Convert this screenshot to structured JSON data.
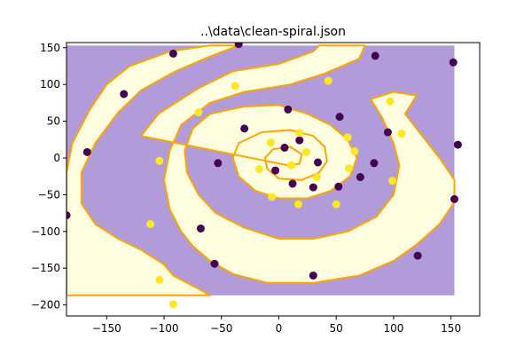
{
  "chart_data": {
    "type": "scatter",
    "title": "..\\data\\clean-spiral.json",
    "xlabel": "",
    "ylabel": "",
    "xlim": [
      -185,
      175
    ],
    "ylim": [
      -215,
      157
    ],
    "xticks": [
      -150,
      -100,
      -50,
      0,
      50,
      100,
      150
    ],
    "yticks": [
      -200,
      -150,
      -100,
      -50,
      0,
      50,
      100,
      150
    ],
    "grid": false,
    "background_region": {
      "x": [
        -185,
        153
      ],
      "y": [
        -187,
        153
      ],
      "class0_color": "#b19cd9",
      "class1_color": "#ffffe0",
      "boundary_color": "#ffa500"
    },
    "class1_regions": [
      [
        [
          -185,
          -155
        ],
        [
          -185,
          -187
        ],
        [
          -60,
          -187
        ],
        [
          -70,
          -178
        ],
        [
          -80,
          -170
        ],
        [
          -92,
          -160
        ],
        [
          -100,
          -145
        ],
        [
          -120,
          -125
        ],
        [
          -140,
          -110
        ],
        [
          -160,
          -90
        ],
        [
          -172,
          -62
        ],
        [
          -172,
          -20
        ],
        [
          -160,
          20
        ],
        [
          -140,
          62
        ],
        [
          -120,
          92
        ],
        [
          -90,
          118
        ],
        [
          -60,
          138
        ],
        [
          -35,
          153
        ],
        [
          -60,
          153
        ],
        [
          -95,
          145
        ],
        [
          -130,
          125
        ],
        [
          -150,
          100
        ],
        [
          -165,
          65
        ],
        [
          -180,
          20
        ],
        [
          -185,
          -20
        ]
      ],
      [
        [
          -120,
          30
        ],
        [
          -105,
          60
        ],
        [
          -70,
          95
        ],
        [
          -40,
          118
        ],
        [
          0,
          128
        ],
        [
          30,
          145
        ],
        [
          35,
          153
        ],
        [
          75,
          153
        ],
        [
          70,
          135
        ],
        [
          40,
          115
        ],
        [
          10,
          100
        ],
        [
          -30,
          90
        ],
        [
          -60,
          75
        ],
        [
          -85,
          45
        ],
        [
          -95,
          10
        ],
        [
          -100,
          -30
        ],
        [
          -95,
          -70
        ],
        [
          -85,
          -100
        ],
        [
          -75,
          -120
        ],
        [
          -60,
          -140
        ],
        [
          -40,
          -158
        ],
        [
          -10,
          -170
        ],
        [
          30,
          -170
        ],
        [
          70,
          -160
        ],
        [
          100,
          -140
        ],
        [
          120,
          -118
        ],
        [
          140,
          -90
        ],
        [
          153,
          -60
        ],
        [
          153,
          -30
        ],
        [
          140,
          0
        ],
        [
          125,
          30
        ],
        [
          110,
          60
        ],
        [
          120,
          85
        ],
        [
          100,
          90
        ],
        [
          80,
          80
        ],
        [
          90,
          55
        ],
        [
          100,
          20
        ],
        [
          105,
          -10
        ],
        [
          100,
          -50
        ],
        [
          85,
          -80
        ],
        [
          60,
          -100
        ],
        [
          30,
          -110
        ],
        [
          0,
          -110
        ],
        [
          -30,
          -95
        ],
        [
          -55,
          -75
        ],
        [
          -70,
          -50
        ],
        [
          -80,
          -20
        ],
        [
          -82,
          10
        ],
        [
          -75,
          40
        ],
        [
          -60,
          60
        ],
        [
          -30,
          70
        ],
        [
          0,
          72
        ],
        [
          25,
          60
        ],
        [
          45,
          45
        ],
        [
          60,
          25
        ],
        [
          68,
          0
        ],
        [
          62,
          -25
        ],
        [
          45,
          -45
        ],
        [
          25,
          -55
        ],
        [
          0,
          -55
        ],
        [
          -20,
          -45
        ],
        [
          -35,
          -25
        ],
        [
          -40,
          0
        ],
        [
          -35,
          20
        ],
        [
          -15,
          35
        ],
        [
          10,
          38
        ],
        [
          30,
          30
        ],
        [
          40,
          15
        ],
        [
          42,
          -5
        ],
        [
          35,
          -20
        ],
        [
          20,
          -30
        ],
        [
          0,
          -28
        ],
        [
          -10,
          -15
        ],
        [
          -12,
          0
        ],
        [
          -5,
          12
        ],
        [
          10,
          15
        ],
        [
          20,
          5
        ],
        [
          18,
          -8
        ],
        [
          8,
          -10
        ]
      ]
    ],
    "series": [
      {
        "color": "#440154",
        "points": [
          [
            -35,
            155
          ],
          [
            -92,
            142
          ],
          [
            -135,
            87
          ],
          [
            -167,
            8
          ],
          [
            -185,
            -78
          ],
          [
            -56,
            -144
          ],
          [
            -68,
            -96
          ],
          [
            -53,
            -7
          ],
          [
            -30,
            40
          ],
          [
            8,
            66
          ],
          [
            53,
            56
          ],
          [
            84,
            139
          ],
          [
            152,
            130
          ],
          [
            156,
            18
          ],
          [
            153,
            -56
          ],
          [
            121,
            -133
          ],
          [
            30,
            -160
          ],
          [
            95,
            35
          ],
          [
            83,
            -7
          ],
          [
            71,
            -26
          ],
          [
            52,
            -39
          ],
          [
            30,
            -40
          ],
          [
            12,
            -35
          ],
          [
            -3,
            -17
          ],
          [
            5,
            14
          ],
          [
            18,
            24
          ],
          [
            34,
            -6
          ]
        ]
      },
      {
        "color": "#fde725",
        "points": [
          [
            -38,
            98
          ],
          [
            -70,
            62
          ],
          [
            -104,
            -4
          ],
          [
            -112,
            -90
          ],
          [
            -104,
            -166
          ],
          [
            -92,
            -199
          ],
          [
            -17,
            -15
          ],
          [
            -7,
            21
          ],
          [
            -6,
            -53
          ],
          [
            17,
            -63
          ],
          [
            11,
            -10
          ],
          [
            18,
            34
          ],
          [
            24,
            8
          ],
          [
            33,
            -26
          ],
          [
            43,
            105
          ],
          [
            50,
            -63
          ],
          [
            60,
            28
          ],
          [
            61,
            -14
          ],
          [
            66,
            9
          ],
          [
            97,
            77
          ],
          [
            107,
            33
          ],
          [
            99,
            -31
          ]
        ]
      }
    ]
  }
}
